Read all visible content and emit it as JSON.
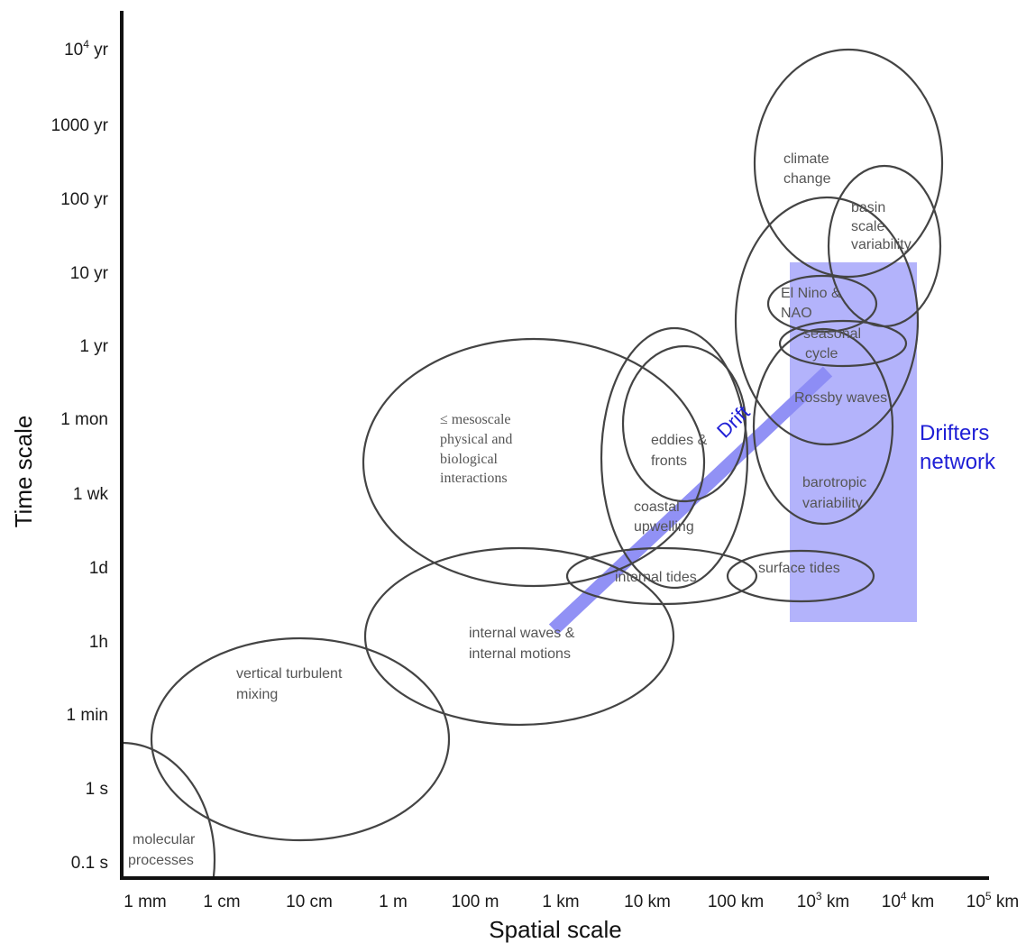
{
  "axes": {
    "x_title": "Spatial scale",
    "y_title": "Time scale",
    "x_ticks": [
      "1 mm",
      "1 cm",
      "10 cm",
      "1 m",
      "100 m",
      "1 km",
      "10 km",
      "100 km",
      "10",
      "10",
      "10"
    ],
    "x_tick_sups": [
      "",
      "",
      "",
      "",
      "",
      "",
      "",
      "",
      "3",
      "4",
      "5"
    ],
    "x_tick_units": [
      "",
      "",
      "",
      "",
      "",
      "",
      "",
      "",
      " km",
      " km",
      " km"
    ],
    "y_ticks": [
      "10",
      "1000 yr",
      "100 yr",
      "10 yr",
      "1 yr",
      "1 mon",
      "1 wk",
      "1d",
      "1h",
      "1 min",
      "1 s",
      "0.1 s"
    ],
    "y_tick_sup": "4",
    "y_tick_sup_unit": " yr"
  },
  "phenomena": [
    {
      "id": "molecular",
      "lines": [
        "molecular",
        "processes"
      ]
    },
    {
      "id": "vertical",
      "lines": [
        "vertical turbulent",
        "mixing"
      ]
    },
    {
      "id": "internal-waves",
      "lines": [
        "internal waves &",
        "internal motions"
      ]
    },
    {
      "id": "mesoscale",
      "lines": [
        "≤ mesoscale",
        "physical and",
        "biological",
        "interactions"
      ]
    },
    {
      "id": "internal-tides",
      "lines": [
        "internal tides"
      ]
    },
    {
      "id": "surface-tides",
      "lines": [
        "surface tides"
      ]
    },
    {
      "id": "eddies",
      "lines": [
        "eddies &",
        "fronts"
      ]
    },
    {
      "id": "coastal",
      "lines": [
        "coastal",
        "upwelling"
      ]
    },
    {
      "id": "rossby",
      "lines": [
        "Rossby waves"
      ]
    },
    {
      "id": "barotropic",
      "lines": [
        "barotropic",
        "variability"
      ]
    },
    {
      "id": "seasonal",
      "lines": [
        "seasonal",
        "cycle"
      ]
    },
    {
      "id": "elnino",
      "lines": [
        "El Nino &",
        "NAO"
      ]
    },
    {
      "id": "basin",
      "lines": [
        "basin",
        "scale",
        "variability"
      ]
    },
    {
      "id": "climate",
      "lines": [
        "climate",
        "change"
      ]
    }
  ],
  "drift_label": "Drift",
  "network_label_lines": [
    "Drifters",
    "network"
  ],
  "colors": {
    "network": "#b3b3fb",
    "drift": "#8c8cf5",
    "label_blue": "#1f1fd6"
  }
}
